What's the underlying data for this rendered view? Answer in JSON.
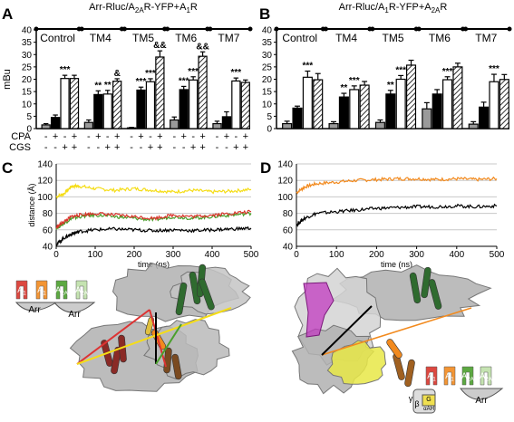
{
  "colors": {
    "black": "#000000",
    "white": "#ffffff",
    "gray": "#9a9a9a",
    "red": "#d9342b",
    "green": "#4aa02c",
    "orange": "#f28a1e",
    "yellow": "#f5dd17",
    "magenta": "#c23ac0",
    "darkgreen": "#2f6b2f",
    "surface": "#b0b0b0"
  },
  "chart_data": [
    {
      "type": "bar",
      "panel_label": "A",
      "title_parts": {
        "prefix": "Arr-Rluc/A",
        "sub1": "2A",
        "mid": "R-YFP+A",
        "sub2": "1",
        "suffix": "R"
      },
      "ylabel": "mBu",
      "ylim": [
        0,
        40
      ],
      "yticks": [
        "0",
        "5",
        "10",
        "15",
        "20",
        "25",
        "30",
        "35",
        "40"
      ],
      "groups": [
        "Control",
        "TM4",
        "TM5",
        "TM6",
        "TM7"
      ],
      "row_labels": [
        "CPA",
        "CGS"
      ],
      "bar_fills": [
        "gray",
        "black",
        "white",
        "hatch"
      ],
      "cpa": [
        "-",
        "+",
        "-",
        "+"
      ],
      "cgs": [
        "-",
        "-",
        "+",
        "+"
      ],
      "values": [
        [
          1.5,
          4.5,
          20.3,
          20.3
        ],
        [
          2.5,
          13.8,
          14.0,
          19.2
        ],
        [
          0.3,
          15.6,
          19.0,
          29.0
        ],
        [
          3.5,
          15.8,
          19.7,
          29.3
        ],
        [
          2.0,
          4.8,
          19.3,
          18.7
        ]
      ],
      "errors": [
        [
          0.5,
          1.0,
          1.3,
          1.3
        ],
        [
          1.0,
          1.5,
          1.5,
          1.0
        ],
        [
          0.2,
          1.2,
          1.2,
          2.5
        ],
        [
          1.2,
          1.3,
          1.3,
          1.8
        ],
        [
          1.0,
          2.0,
          1.2,
          1.0
        ]
      ],
      "annotations": [
        {
          "group": 0,
          "bar": 2,
          "text": "***"
        },
        {
          "group": 1,
          "bar": 1,
          "text": "**"
        },
        {
          "group": 1,
          "bar": 2,
          "text": "**"
        },
        {
          "group": 1,
          "bar": 3,
          "text": "&"
        },
        {
          "group": 2,
          "bar": 1,
          "text": "***"
        },
        {
          "group": 2,
          "bar": 2,
          "text": "***"
        },
        {
          "group": 2,
          "bar": 3,
          "text": "&&"
        },
        {
          "group": 3,
          "bar": 1,
          "text": "***"
        },
        {
          "group": 3,
          "bar": 2,
          "text": "***"
        },
        {
          "group": 3,
          "bar": 3,
          "text": "&&"
        },
        {
          "group": 4,
          "bar": 2,
          "text": "***"
        }
      ]
    },
    {
      "type": "bar",
      "panel_label": "B",
      "title_parts": {
        "prefix": "Arr-Rluc/A",
        "sub1": "1",
        "mid": "R-YFP+A",
        "sub2": "2A",
        "suffix": "R"
      },
      "ylabel": "",
      "ylim": [
        0,
        40
      ],
      "yticks": [
        "0",
        "5",
        "10",
        "15",
        "20",
        "25",
        "30",
        "35",
        "40"
      ],
      "groups": [
        "Control",
        "TM4",
        "TM5",
        "TM6",
        "TM7"
      ],
      "bar_fills": [
        "gray",
        "black",
        "white",
        "hatch"
      ],
      "cpa": [
        "-",
        "+",
        "-",
        "+"
      ],
      "cgs": [
        "-",
        "-",
        "+",
        "+"
      ],
      "values": [
        [
          2.0,
          8.3,
          20.8,
          19.8
        ],
        [
          2.0,
          12.8,
          15.8,
          17.6
        ],
        [
          2.5,
          14.0,
          20.0,
          25.7
        ],
        [
          8.0,
          14.0,
          19.8,
          25.0
        ],
        [
          1.8,
          8.7,
          19.0,
          19.9
        ]
      ],
      "errors": [
        [
          1.0,
          0.8,
          2.5,
          2.5
        ],
        [
          0.8,
          1.5,
          1.5,
          1.5
        ],
        [
          1.0,
          1.5,
          1.5,
          2.0
        ],
        [
          2.5,
          1.8,
          1.2,
          1.5
        ],
        [
          1.0,
          2.0,
          3.0,
          2.0
        ]
      ],
      "annotations": [
        {
          "group": 0,
          "bar": 2,
          "text": "***"
        },
        {
          "group": 1,
          "bar": 1,
          "text": "**"
        },
        {
          "group": 1,
          "bar": 2,
          "text": "***"
        },
        {
          "group": 2,
          "bar": 1,
          "text": "**"
        },
        {
          "group": 2,
          "bar": 2,
          "text": "***"
        },
        {
          "group": 3,
          "bar": 2,
          "text": "***"
        },
        {
          "group": 4,
          "bar": 2,
          "text": "***"
        }
      ]
    },
    {
      "type": "line",
      "panel_label": "C",
      "xlabel": "time (ns)",
      "ylabel": "distance (Å)",
      "xlim": [
        0,
        500
      ],
      "ylim": [
        40,
        140
      ],
      "xticks": [
        "0",
        "100",
        "200",
        "300",
        "400",
        "500"
      ],
      "yticks": [
        "40",
        "60",
        "80",
        "100",
        "120",
        "140"
      ],
      "series": [
        {
          "color": "yellow",
          "x": [
            0,
            20,
            40,
            60,
            100,
            150,
            200,
            250,
            300,
            350,
            400,
            450,
            500
          ],
          "y": [
            100,
            104,
            113,
            113,
            110,
            108,
            110,
            108,
            106,
            108,
            106,
            107,
            109
          ]
        },
        {
          "color": "green",
          "x": [
            0,
            20,
            40,
            60,
            100,
            150,
            200,
            250,
            300,
            350,
            400,
            450,
            500
          ],
          "y": [
            62,
            68,
            74,
            76,
            78,
            76,
            74,
            72,
            76,
            74,
            76,
            78,
            80
          ]
        },
        {
          "color": "red",
          "x": [
            0,
            20,
            40,
            60,
            100,
            150,
            200,
            250,
            300,
            350,
            400,
            450,
            500
          ],
          "y": [
            63,
            70,
            76,
            78,
            80,
            78,
            76,
            74,
            78,
            76,
            78,
            80,
            82
          ]
        },
        {
          "color": "black",
          "x": [
            0,
            20,
            40,
            60,
            100,
            150,
            200,
            250,
            300,
            350,
            400,
            450,
            500
          ],
          "y": [
            42,
            50,
            55,
            58,
            60,
            61,
            60,
            59,
            60,
            59,
            60,
            61,
            62
          ]
        }
      ]
    },
    {
      "type": "line",
      "panel_label": "D",
      "xlabel": "time (ns)",
      "xlim": [
        0,
        500
      ],
      "ylim": [
        40,
        140
      ],
      "xticks": [
        "0",
        "100",
        "200",
        "300",
        "400",
        "500"
      ],
      "yticks": [
        "40",
        "60",
        "80",
        "100",
        "120",
        "140"
      ],
      "series": [
        {
          "color": "orange",
          "x": [
            0,
            20,
            50,
            100,
            150,
            200,
            250,
            300,
            350,
            400,
            450,
            500
          ],
          "y": [
            105,
            112,
            116,
            118,
            120,
            121,
            122,
            122,
            121,
            122,
            121,
            122
          ]
        },
        {
          "color": "black",
          "x": [
            0,
            20,
            50,
            100,
            150,
            200,
            250,
            300,
            350,
            400,
            450,
            500
          ],
          "y": [
            66,
            74,
            80,
            82,
            84,
            86,
            87,
            88,
            88,
            89,
            88,
            89
          ]
        }
      ]
    }
  ],
  "schematic_c": {
    "labels": [
      {
        "base": "A",
        "sub": "1"
      },
      {
        "base": "A",
        "sub": "1"
      },
      {
        "base": "A",
        "sub": "2A"
      },
      {
        "base": "A",
        "sub": "2A"
      }
    ],
    "arr": [
      "Arr",
      "Arr"
    ]
  },
  "schematic_d": {
    "labels": [
      {
        "base": "A",
        "sub": "1"
      },
      {
        "base": "A",
        "sub": "1"
      },
      {
        "base": "A",
        "sub": "2A"
      },
      {
        "base": "A",
        "sub": "2A"
      }
    ],
    "arr": "Arr",
    "g_labels": [
      "γ",
      "β",
      "G",
      "αAH"
    ]
  }
}
